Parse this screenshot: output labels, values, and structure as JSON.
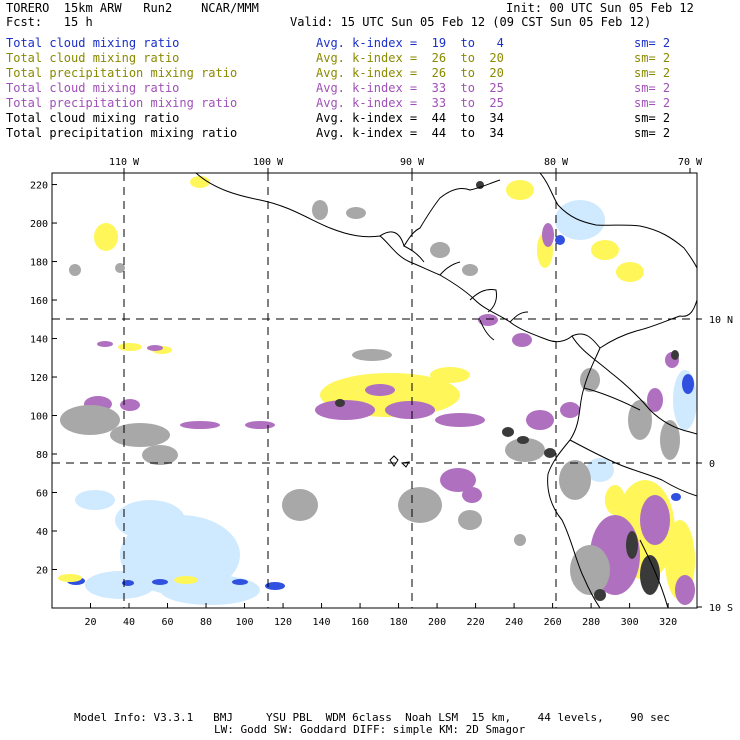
{
  "header": {
    "model": "TORERO  15km ARW   Run2    NCAR/MMM",
    "init": "Init: 00 UTC Sun 05 Feb 12",
    "fcst": "Fcst:   15 h",
    "valid": "Valid: 15 UTC Sun 05 Feb 12 (09 CST Sun 05 Feb 12)"
  },
  "fields": [
    {
      "name": "Total cloud mixing ratio",
      "kindex": "Avg. k-index =  19  to   4",
      "sm": "sm= 2",
      "color": "#1a2fc8"
    },
    {
      "name": "Total cloud mixing ratio",
      "kindex": "Avg. k-index =  26  to  20",
      "sm": "sm= 2",
      "color": "#8a8a00"
    },
    {
      "name": "Total precipitation mixing ratio",
      "kindex": "Avg. k-index =  26  to  20",
      "sm": "sm= 2",
      "color": "#8a8a00"
    },
    {
      "name": "Total cloud mixing ratio",
      "kindex": "Avg. k-index =  33  to  25",
      "sm": "sm= 2",
      "color": "#a050b8"
    },
    {
      "name": "Total precipitation mixing ratio",
      "kindex": "Avg. k-index =  33  to  25",
      "sm": "sm= 2",
      "color": "#a050b8"
    },
    {
      "name": "Total cloud mixing ratio",
      "kindex": "Avg. k-index =  44  to  34",
      "sm": "sm= 2",
      "color": "#000000"
    },
    {
      "name": "Total precipitation mixing ratio",
      "kindex": "Avg. k-index =  44  to  34",
      "sm": "sm= 2",
      "color": "#000000"
    }
  ],
  "map": {
    "lon_labels": [
      "110 W",
      "100 W",
      "90 W",
      "80 W",
      "70 W"
    ],
    "lat_labels": [
      "10 N",
      "0",
      "10 S"
    ],
    "x_ticks": [
      "20",
      "40",
      "60",
      "80",
      "100",
      "120",
      "140",
      "160",
      "180",
      "200",
      "220",
      "240",
      "260",
      "280",
      "300",
      "320"
    ],
    "y_ticks": [
      "220",
      "200",
      "180",
      "160",
      "140",
      "120",
      "100",
      "80",
      "60",
      "40",
      "20"
    ],
    "colors": {
      "cloud_light_blue": "#bfe6ff",
      "cloud_blue": "#3050e0",
      "yellow": "#fff65a",
      "purple": "#b070c0",
      "gray": "#a8a8a8",
      "dark_gray": "#404040"
    }
  },
  "footer": {
    "line1": "Model Info: V3.3.1   BMJ     YSU PBL  WDM 6class  Noah LSM  15 km,    44 levels,    90 sec",
    "line2": "LW: Godd SW: Goddard DIFF: simple KM: 2D Smagor"
  }
}
